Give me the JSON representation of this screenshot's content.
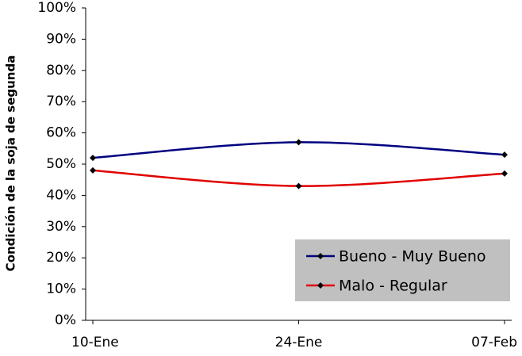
{
  "chart_data": {
    "type": "line",
    "y_label": "Condición de la soja de segunda",
    "categories": [
      "10-Ene",
      "24-Ene",
      "07-Feb"
    ],
    "series": [
      {
        "name": "Bueno - Muy Bueno",
        "color": "#000080",
        "values": [
          52,
          57,
          53
        ]
      },
      {
        "name": "Malo - Regular",
        "color": "#e00000",
        "values": [
          48,
          43,
          47
        ]
      }
    ],
    "ylim": [
      0,
      100
    ],
    "yticks": [
      {
        "value": 0,
        "label": "0%"
      },
      {
        "value": 10,
        "label": "10%"
      },
      {
        "value": 20,
        "label": "20%"
      },
      {
        "value": 30,
        "label": "30%"
      },
      {
        "value": 40,
        "label": "40%"
      },
      {
        "value": 50,
        "label": "50%"
      },
      {
        "value": 60,
        "label": "60%"
      },
      {
        "value": 70,
        "label": "70%"
      },
      {
        "value": 80,
        "label": "80%"
      },
      {
        "value": 90,
        "label": "90%"
      },
      {
        "value": 100,
        "label": "100%"
      }
    ],
    "legend_position": "lower right",
    "legend_background": "#c0c0c0",
    "smooth": true
  }
}
